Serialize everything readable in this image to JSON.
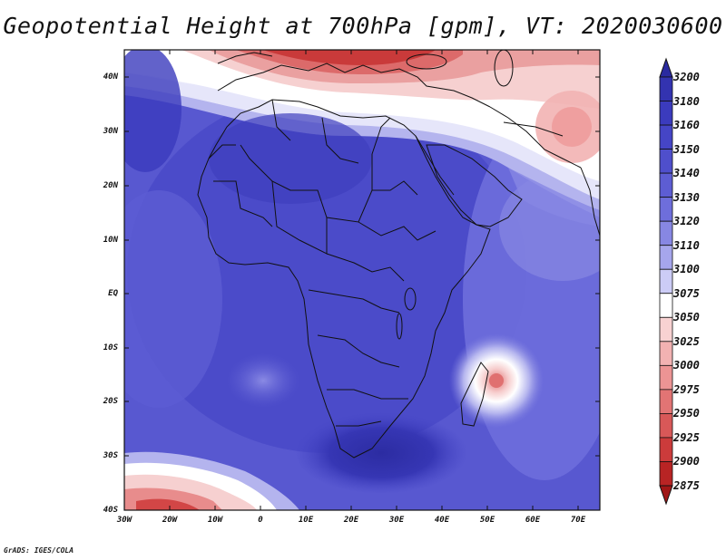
{
  "title": "Geopotential Height at 700hPa [gpm], VT: 2020030600",
  "credit": "GrADS: IGES/COLA",
  "map": {
    "lon_range": [
      -30,
      75
    ],
    "lat_range": [
      -40,
      45
    ],
    "lat_ticks": [
      "40N",
      "30N",
      "20N",
      "10N",
      "EQ",
      "10S",
      "20S",
      "30S",
      "40S"
    ],
    "lon_ticks": [
      "30W",
      "20W",
      "10W",
      "0",
      "10E",
      "20E",
      "30E",
      "40E",
      "50E",
      "60E",
      "70E"
    ]
  },
  "colorbar": {
    "levels": [
      "3200",
      "3180",
      "3160",
      "3150",
      "3140",
      "3130",
      "3120",
      "3110",
      "3100",
      "3075",
      "3050",
      "3025",
      "3000",
      "2975",
      "2950",
      "2925",
      "2900",
      "2875"
    ],
    "colors": [
      "#2a2aa0",
      "#3333b0",
      "#3b3bbd",
      "#4545c6",
      "#4f4fcc",
      "#5d5dd3",
      "#6e6edb",
      "#8787e3",
      "#a6a6ec",
      "#ccccf6",
      "#ffffff",
      "#f8d2d2",
      "#f2b2b2",
      "#ec9494",
      "#e27474",
      "#d85858",
      "#cc3b3b",
      "#b82424",
      "#a01616"
    ]
  }
}
